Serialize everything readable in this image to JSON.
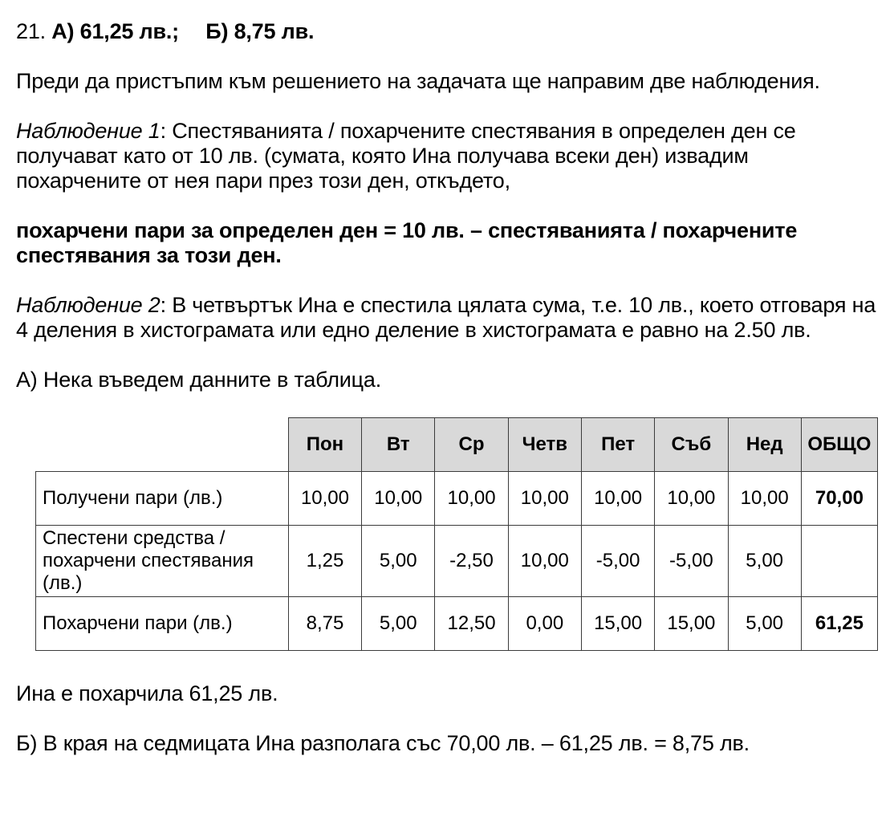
{
  "doc": {
    "heading": {
      "number": "21.",
      "answer_a": "А) 61,25 лв.;",
      "answer_b": "Б) 8,75 лв."
    },
    "intro": "Преди да пристъпим към решението на задачата ще направим две наблюдения.",
    "observation1": {
      "label": "Наблюдение 1",
      "text": ": Спестяванията / похарчените спестявания в определен ден се получават като от 10 лв. (сумата, която Ина получава всеки ден) извадим похарчените от нея пари през този ден, откъдето,"
    },
    "formula": "похарчени пари за определен ден = 10 лв. – спестяванията / похарчените спестявания за този ден.",
    "observation2": {
      "label": "Наблюдение 2",
      "text": ": В четвъртък Ина е спестила цялата сума, т.е. 10 лв., което отговаря на 4 деления в хистограмата или едно деление в хистограмата е равно на 2.50 лв."
    },
    "section_a": "А) Нека въведем данните в таблица.",
    "conclusion_a": "Ина е похарчила 61,25 лв.",
    "conclusion_b": "Б) В края на седмицата Ина разполага със 70,00 лв. – 61,25 лв. = 8,75 лв."
  },
  "table": {
    "columns": [
      "Пон",
      "Вт",
      "Ср",
      "Четв",
      "Пет",
      "Съб",
      "Нед",
      "ОБЩО"
    ],
    "rows": [
      {
        "label": "Получени пари (лв.)",
        "values": [
          "10,00",
          "10,00",
          "10,00",
          "10,00",
          "10,00",
          "10,00",
          "10,00"
        ],
        "total": "70,00"
      },
      {
        "label": "Спестени средства / похарчени спестявания (лв.)",
        "values": [
          "1,25",
          "5,00",
          "-2,50",
          "10,00",
          "-5,00",
          "-5,00",
          "5,00"
        ],
        "total": ""
      },
      {
        "label": "Похарчени пари (лв.)",
        "values": [
          "8,75",
          "5,00",
          "12,50",
          "0,00",
          "15,00",
          "15,00",
          "5,00"
        ],
        "total": "61,25"
      }
    ]
  },
  "colors": {
    "header_bg": "#d9d9d9",
    "border": "#3b3b3b",
    "text": "#000000",
    "background": "#ffffff"
  }
}
